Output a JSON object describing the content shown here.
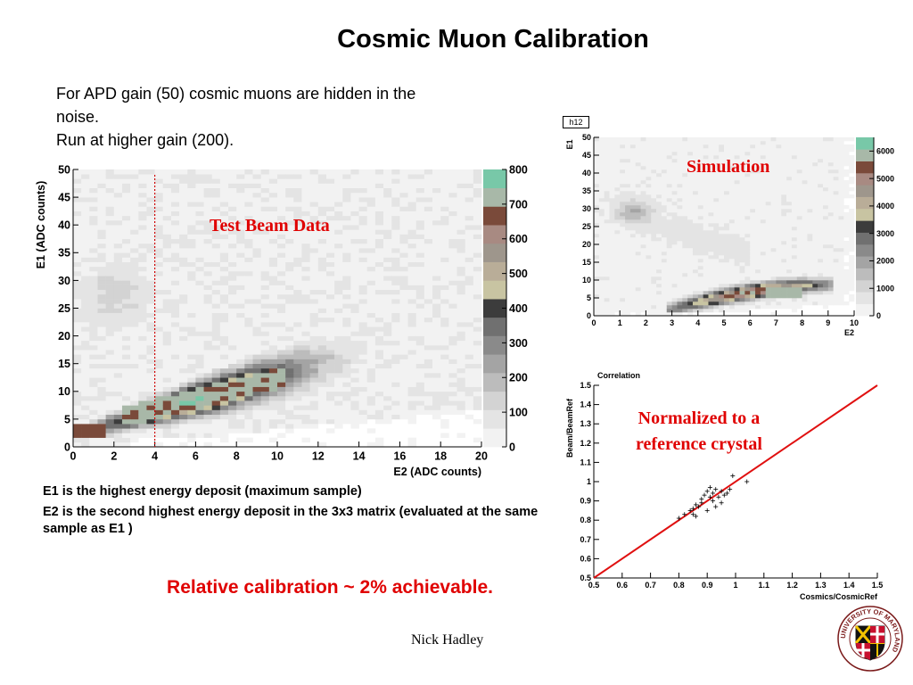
{
  "slide": {
    "title": "Cosmic Muon Calibration",
    "intro_lines": [
      "For APD gain (50) cosmic muons are hidden in the",
      "noise.",
      "Run at higher gain (200)."
    ],
    "notes": [
      "E1 is the highest energy deposit (maximum sample)",
      "E2 is the second highest energy deposit in the 3x3 matrix (evaluated at the same sample as E1 )"
    ],
    "conclusion": "Relative calibration ~ 2% achievable.",
    "author": "Nick Hadley",
    "logo_text": "UNIVERSITY OF MARYLAND"
  },
  "colors": {
    "title_text": "#000000",
    "highlight_red": "#e00000",
    "cut_line": "#d00000",
    "fit_line": "#e01010",
    "palette": [
      "#f2f2f2",
      "#e4e4e4",
      "#d3d3d3",
      "#bcbcbc",
      "#a4a4a4",
      "#8a8a8a",
      "#707070",
      "#3c3c3c",
      "#c8c4a2",
      "#b9ad98",
      "#9e968c",
      "#a88a82",
      "#7a4a3a",
      "#a8b8a8",
      "#78c8a8"
    ]
  },
  "chart_data": [
    {
      "type": "heatmap",
      "panel": "test-beam",
      "overlay_label": "Test Beam Data",
      "xlabel": "E2 (ADC counts)",
      "ylabel": "E1 (ADC counts)",
      "xlim": [
        0,
        20
      ],
      "ylim": [
        0,
        50
      ],
      "xticks": [
        "0",
        "2",
        "4",
        "6",
        "8",
        "10",
        "12",
        "14",
        "16",
        "18",
        "20"
      ],
      "yticks": [
        "0",
        "5",
        "10",
        "15",
        "20",
        "25",
        "30",
        "35",
        "40",
        "45",
        "50"
      ],
      "zlim": [
        0,
        800
      ],
      "zticks": [
        "0",
        "100",
        "200",
        "300",
        "400",
        "500",
        "600",
        "700",
        "800"
      ],
      "cut_line_x": 4,
      "bins": [
        50,
        60
      ]
    },
    {
      "type": "heatmap",
      "panel": "simulation",
      "histogram_name": "h12",
      "overlay_label": "Simulation",
      "xlabel": "E2",
      "ylabel": "E1",
      "xlim": [
        0,
        10
      ],
      "ylim": [
        0,
        50
      ],
      "xticks": [
        "0",
        "1",
        "2",
        "3",
        "4",
        "5",
        "6",
        "7",
        "8",
        "9",
        "10"
      ],
      "yticks": [
        "0",
        "5",
        "10",
        "15",
        "20",
        "25",
        "30",
        "35",
        "40",
        "45",
        "50"
      ],
      "zlim": [
        0,
        6500
      ],
      "zticks": [
        "0",
        "1000",
        "2000",
        "3000",
        "4000",
        "5000",
        "6000"
      ],
      "bins": [
        50,
        50
      ]
    },
    {
      "type": "scatter",
      "panel": "correlation",
      "title": "Correlation",
      "overlay_label": "Normalized to a reference crystal",
      "xlabel": "Cosmics/CosmicRef",
      "ylabel": "Beam/BeamRef",
      "xlim": [
        0.5,
        1.5
      ],
      "ylim": [
        0.5,
        1.5
      ],
      "xticks": [
        "0.5",
        "0.6",
        "0.7",
        "0.8",
        "0.9",
        "1",
        "1.1",
        "1.2",
        "1.3",
        "1.4",
        "1.5"
      ],
      "yticks": [
        "0.5",
        "0.6",
        "0.7",
        "0.8",
        "0.9",
        "1",
        "1.1",
        "1.2",
        "1.3",
        "1.4",
        "1.5"
      ],
      "line": {
        "x": [
          0.5,
          1.5
        ],
        "y": [
          0.5,
          1.5
        ]
      },
      "points": [
        [
          0.8,
          0.81
        ],
        [
          0.82,
          0.83
        ],
        [
          0.84,
          0.85
        ],
        [
          0.85,
          0.86
        ],
        [
          0.85,
          0.83
        ],
        [
          0.86,
          0.82
        ],
        [
          0.86,
          0.88
        ],
        [
          0.87,
          0.87
        ],
        [
          0.88,
          0.91
        ],
        [
          0.88,
          0.89
        ],
        [
          0.89,
          0.93
        ],
        [
          0.9,
          0.85
        ],
        [
          0.9,
          0.95
        ],
        [
          0.91,
          0.92
        ],
        [
          0.91,
          0.97
        ],
        [
          0.92,
          0.9
        ],
        [
          0.92,
          0.94
        ],
        [
          0.93,
          0.87
        ],
        [
          0.93,
          0.96
        ],
        [
          0.94,
          0.92
        ],
        [
          0.95,
          0.95
        ],
        [
          0.95,
          0.89
        ],
        [
          0.96,
          0.93
        ],
        [
          0.97,
          0.94
        ],
        [
          0.98,
          0.96
        ],
        [
          0.99,
          1.03
        ],
        [
          1.04,
          1.0
        ]
      ]
    }
  ]
}
